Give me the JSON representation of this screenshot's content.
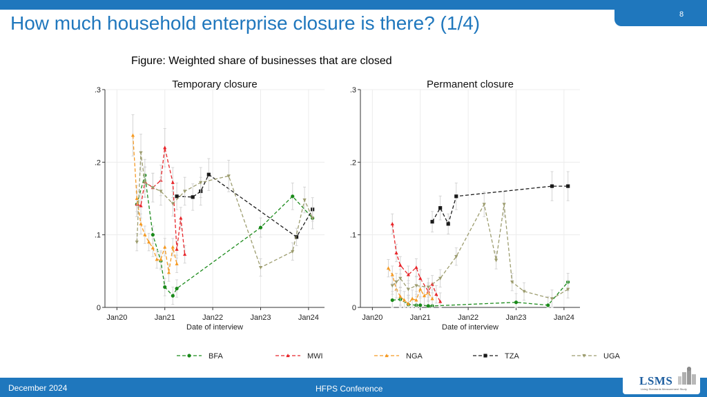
{
  "slide": {
    "page_number": "8",
    "title": "How much household enterprise closure is there? (1/4)",
    "figure_caption": "Figure: Weighted share of businesses that are closed",
    "footer_date": "December 2024",
    "footer_conference": "HFPS Conference",
    "logo_text": "LSMS",
    "logo_subtext": "Living Standards Measurement Study"
  },
  "colors": {
    "accent": "#1f77bd",
    "BFA": "#1a8a1a",
    "MWI": "#e8252a",
    "NGA": "#f59a23",
    "TZA": "#1a1a1a",
    "UGA": "#9c9c6e"
  },
  "chart_data": [
    {
      "type": "line",
      "title": "Temporary closure",
      "xlabel": "Date of interview",
      "ylabel": "",
      "xlim": [
        "2019-10",
        "2024-05"
      ],
      "ylim": [
        0,
        0.3
      ],
      "x_ticks": [
        "Jan20",
        "Jan21",
        "Jan22",
        "Jan23",
        "Jan24"
      ],
      "y_ticks": [
        "0",
        ".1",
        ".2",
        ".3"
      ],
      "grid": true,
      "error_bars": true,
      "series": [
        {
          "name": "BFA",
          "points": [
            [
              "2020-06",
              0.142
            ],
            [
              "2020-08",
              0.182
            ],
            [
              "2020-10",
              0.1
            ],
            [
              "2020-12",
              0.064
            ],
            [
              "2021-01",
              0.028
            ],
            [
              "2021-03",
              0.016
            ],
            [
              "2021-04",
              0.026
            ],
            [
              "2023-01",
              0.11
            ],
            [
              "2023-09",
              0.153
            ],
            [
              "2024-02",
              0.123
            ]
          ]
        },
        {
          "name": "MWI",
          "points": [
            [
              "2020-06",
              0.142
            ],
            [
              "2020-07",
              0.14
            ],
            [
              "2020-08",
              0.173
            ],
            [
              "2020-10",
              0.165
            ],
            [
              "2020-12",
              0.175
            ],
            [
              "2021-01",
              0.22
            ],
            [
              "2021-03",
              0.172
            ],
            [
              "2021-04",
              0.08
            ],
            [
              "2021-05",
              0.123
            ],
            [
              "2021-06",
              0.073
            ]
          ]
        },
        {
          "name": "NGA",
          "points": [
            [
              "2020-05",
              0.237
            ],
            [
              "2020-06",
              0.15
            ],
            [
              "2020-07",
              0.115
            ],
            [
              "2020-08",
              0.1
            ],
            [
              "2020-09",
              0.09
            ],
            [
              "2020-10",
              0.082
            ],
            [
              "2020-11",
              0.066
            ],
            [
              "2020-12",
              0.066
            ],
            [
              "2021-01",
              0.083
            ],
            [
              "2021-02",
              0.048
            ],
            [
              "2021-03",
              0.083
            ],
            [
              "2021-04",
              0.06
            ]
          ]
        },
        {
          "name": "TZA",
          "points": [
            [
              "2021-04",
              0.153
            ],
            [
              "2021-08",
              0.152
            ],
            [
              "2021-10",
              0.16
            ],
            [
              "2021-12",
              0.183
            ],
            [
              "2023-10",
              0.097
            ],
            [
              "2024-02",
              0.135
            ]
          ]
        },
        {
          "name": "UGA",
          "points": [
            [
              "2020-06",
              0.09
            ],
            [
              "2020-07",
              0.213
            ],
            [
              "2020-08",
              0.172
            ],
            [
              "2020-10",
              0.165
            ],
            [
              "2020-12",
              0.16
            ],
            [
              "2021-03",
              0.143
            ],
            [
              "2021-06",
              0.16
            ],
            [
              "2021-10",
              0.172
            ],
            [
              "2022-05",
              0.181
            ],
            [
              "2023-01",
              0.055
            ],
            [
              "2023-09",
              0.077
            ],
            [
              "2023-12",
              0.148
            ],
            [
              "2024-02",
              0.123
            ]
          ]
        }
      ]
    },
    {
      "type": "line",
      "title": "Permanent closure",
      "xlabel": "Date of interview",
      "ylabel": "",
      "xlim": [
        "2019-10",
        "2024-05"
      ],
      "ylim": [
        0,
        0.3
      ],
      "x_ticks": [
        "Jan20",
        "Jan21",
        "Jan22",
        "Jan23",
        "Jan24"
      ],
      "y_ticks": [
        "0",
        ".1",
        ".2",
        ".3"
      ],
      "grid": true,
      "error_bars": true,
      "series": [
        {
          "name": "BFA",
          "points": [
            [
              "2020-06",
              0.01
            ],
            [
              "2020-08",
              0.011
            ],
            [
              "2020-10",
              0.004
            ],
            [
              "2020-12",
              0.003
            ],
            [
              "2021-01",
              0.003
            ],
            [
              "2021-03",
              0.002
            ],
            [
              "2021-04",
              0.002
            ],
            [
              "2023-01",
              0.007
            ],
            [
              "2023-09",
              0.003
            ],
            [
              "2024-02",
              0.035
            ]
          ]
        },
        {
          "name": "MWI",
          "points": [
            [
              "2020-06",
              0.115
            ],
            [
              "2020-07",
              0.075
            ],
            [
              "2020-08",
              0.058
            ],
            [
              "2020-10",
              0.045
            ],
            [
              "2020-12",
              0.055
            ],
            [
              "2021-01",
              0.04
            ],
            [
              "2021-03",
              0.022
            ],
            [
              "2021-04",
              0.032
            ],
            [
              "2021-05",
              0.018
            ],
            [
              "2021-06",
              0.008
            ]
          ]
        },
        {
          "name": "NGA",
          "points": [
            [
              "2020-05",
              0.054
            ],
            [
              "2020-06",
              0.045
            ],
            [
              "2020-07",
              0.025
            ],
            [
              "2020-08",
              0.015
            ],
            [
              "2020-09",
              0.01
            ],
            [
              "2020-10",
              0.005
            ],
            [
              "2020-11",
              0.012
            ],
            [
              "2020-12",
              0.01
            ],
            [
              "2021-01",
              0.025
            ],
            [
              "2021-02",
              0.016
            ],
            [
              "2021-03",
              0.02
            ],
            [
              "2021-04",
              0.012
            ]
          ]
        },
        {
          "name": "TZA",
          "points": [
            [
              "2021-04",
              0.118
            ],
            [
              "2021-06",
              0.137
            ],
            [
              "2021-08",
              0.115
            ],
            [
              "2021-10",
              0.153
            ],
            [
              "2023-10",
              0.167
            ],
            [
              "2024-02",
              0.167
            ]
          ]
        },
        {
          "name": "UGA",
          "points": [
            [
              "2020-06",
              0.03
            ],
            [
              "2020-07",
              0.035
            ],
            [
              "2020-08",
              0.04
            ],
            [
              "2020-10",
              0.025
            ],
            [
              "2020-12",
              0.03
            ],
            [
              "2021-03",
              0.028
            ],
            [
              "2021-06",
              0.04
            ],
            [
              "2021-10",
              0.07
            ],
            [
              "2022-05",
              0.142
            ],
            [
              "2022-08",
              0.065
            ],
            [
              "2022-10",
              0.142
            ],
            [
              "2022-12",
              0.035
            ],
            [
              "2023-03",
              0.022
            ],
            [
              "2023-10",
              0.012
            ],
            [
              "2024-02",
              0.025
            ]
          ]
        }
      ]
    }
  ],
  "legend": [
    {
      "key": "BFA",
      "label": "BFA",
      "marker": "circle"
    },
    {
      "key": "MWI",
      "label": "MWI",
      "marker": "triangle"
    },
    {
      "key": "NGA",
      "label": "NGA",
      "marker": "triangle"
    },
    {
      "key": "TZA",
      "label": "TZA",
      "marker": "square"
    },
    {
      "key": "UGA",
      "label": "UGA",
      "marker": "triangle-down"
    }
  ]
}
